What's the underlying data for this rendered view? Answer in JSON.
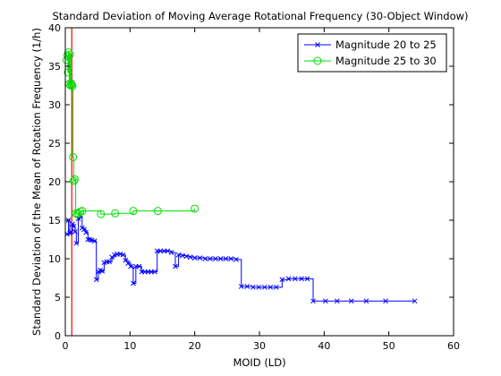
{
  "chart_data": {
    "type": "line",
    "title": "Standard Deviation of Moving Average Rotational Frequency (30-Object Window)",
    "xlabel": "MOID (LD)",
    "ylabel": "Standard Deviation of the Mean of Rotation Frequency (1/h)",
    "xlim": [
      0,
      60
    ],
    "ylim": [
      0,
      40
    ],
    "xticks": [
      0,
      10,
      20,
      30,
      40,
      50,
      60
    ],
    "yticks": [
      0,
      5,
      10,
      15,
      20,
      25,
      30,
      35,
      40
    ],
    "grid": false,
    "legend_position": "top-right",
    "vertical_line": {
      "x": 1.0,
      "color": "#ff0000"
    },
    "series": [
      {
        "name": "Magnitude 20 to 25",
        "color": "#0000ff",
        "marker": "x",
        "points": [
          [
            0.3,
            13.2
          ],
          [
            0.5,
            15.0
          ],
          [
            0.7,
            13.3
          ],
          [
            0.9,
            13.5
          ],
          [
            1.1,
            14.5
          ],
          [
            1.3,
            14.2
          ],
          [
            1.5,
            13.5
          ],
          [
            1.7,
            12.0
          ],
          [
            2.0,
            15.2
          ],
          [
            2.3,
            15.5
          ],
          [
            2.6,
            14.0
          ],
          [
            2.9,
            13.8
          ],
          [
            3.2,
            13.4
          ],
          [
            3.5,
            12.5
          ],
          [
            3.8,
            12.5
          ],
          [
            4.1,
            12.4
          ],
          [
            4.5,
            12.3
          ],
          [
            4.8,
            7.3
          ],
          [
            5.1,
            8.3
          ],
          [
            5.4,
            8.5
          ],
          [
            5.7,
            8.4
          ],
          [
            6.0,
            9.5
          ],
          [
            6.4,
            9.6
          ],
          [
            6.8,
            9.6
          ],
          [
            7.2,
            10.2
          ],
          [
            7.6,
            10.5
          ],
          [
            8.0,
            10.6
          ],
          [
            8.5,
            10.6
          ],
          [
            8.9,
            10.5
          ],
          [
            9.3,
            9.8
          ],
          [
            9.7,
            9.4
          ],
          [
            10.1,
            9.0
          ],
          [
            10.5,
            6.8
          ],
          [
            10.9,
            9.0
          ],
          [
            11.4,
            9.0
          ],
          [
            11.8,
            8.3
          ],
          [
            12.3,
            8.3
          ],
          [
            12.8,
            8.3
          ],
          [
            13.3,
            8.3
          ],
          [
            13.8,
            8.3
          ],
          [
            14.2,
            11.0
          ],
          [
            14.7,
            11.0
          ],
          [
            15.3,
            11.0
          ],
          [
            15.8,
            11.0
          ],
          [
            16.4,
            10.8
          ],
          [
            17.0,
            9.0
          ],
          [
            17.5,
            10.5
          ],
          [
            18.1,
            10.4
          ],
          [
            18.7,
            10.3
          ],
          [
            19.3,
            10.2
          ],
          [
            20.0,
            10.1
          ],
          [
            20.8,
            10.1
          ],
          [
            21.6,
            10.0
          ],
          [
            22.4,
            10.0
          ],
          [
            23.2,
            10.0
          ],
          [
            24.0,
            10.0
          ],
          [
            24.8,
            10.0
          ],
          [
            25.6,
            10.0
          ],
          [
            26.4,
            9.9
          ],
          [
            27.2,
            6.4
          ],
          [
            28.1,
            6.4
          ],
          [
            29.0,
            6.3
          ],
          [
            29.9,
            6.3
          ],
          [
            30.8,
            6.3
          ],
          [
            31.7,
            6.3
          ],
          [
            32.6,
            6.3
          ],
          [
            33.5,
            7.3
          ],
          [
            34.5,
            7.4
          ],
          [
            35.5,
            7.4
          ],
          [
            36.5,
            7.4
          ],
          [
            37.4,
            7.4
          ],
          [
            38.3,
            4.5
          ],
          [
            40.2,
            4.5
          ],
          [
            42.0,
            4.5
          ],
          [
            44.2,
            4.5
          ],
          [
            46.5,
            4.5
          ],
          [
            49.5,
            4.5
          ],
          [
            54.0,
            4.5
          ]
        ]
      },
      {
        "name": "Magnitude 25 to 30",
        "color": "#00dd00",
        "marker": "o",
        "points": [
          [
            0.2,
            35.8
          ],
          [
            0.3,
            36.4
          ],
          [
            0.4,
            34.2
          ],
          [
            0.5,
            36.8
          ],
          [
            0.6,
            32.7
          ],
          [
            0.7,
            36.5
          ],
          [
            0.8,
            32.5
          ],
          [
            0.9,
            32.8
          ],
          [
            1.0,
            32.6
          ],
          [
            1.1,
            32.4
          ],
          [
            1.2,
            23.2
          ],
          [
            1.3,
            20.1
          ],
          [
            1.45,
            20.3
          ],
          [
            1.6,
            15.9
          ],
          [
            1.8,
            15.8
          ],
          [
            2.0,
            15.9
          ],
          [
            2.3,
            16.1
          ],
          [
            2.6,
            16.2
          ],
          [
            5.5,
            15.8
          ],
          [
            7.7,
            15.9
          ],
          [
            10.5,
            16.2
          ],
          [
            14.3,
            16.2
          ],
          [
            20.0,
            16.5
          ]
        ]
      }
    ]
  }
}
